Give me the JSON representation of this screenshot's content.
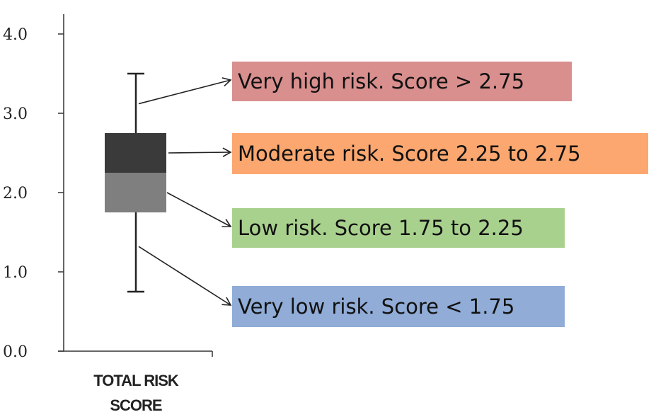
{
  "chart_data": {
    "type": "boxplot",
    "xlabel": "",
    "ylabel": "",
    "ylim": [
      0.0,
      4.0
    ],
    "yticks": [
      "0.0",
      "1.0",
      "2.0",
      "3.0",
      "4.0"
    ],
    "categories": [
      "TOTAL RISK SCORE"
    ],
    "box": {
      "whisker_low": 0.75,
      "q1": 1.75,
      "median": 2.25,
      "q3": 2.75,
      "whisker_high": 3.5,
      "upper_color": "#3a3a3a",
      "lower_color": "#7f7f7f"
    },
    "grid": false,
    "annotations": [
      {
        "text": "Very high risk. Score > 2.75",
        "color": "#d88f8e",
        "anchor_value": 3.12
      },
      {
        "text": "Moderate risk. Score 2.25 to 2.75",
        "color": "#fba76f",
        "anchor_value": 2.5
      },
      {
        "text": "Low risk. Score 1.75 to 2.25",
        "color": "#a9d18e",
        "anchor_value": 2.0
      },
      {
        "text": "Very low risk. Score < 1.75",
        "color": "#90acd7",
        "anchor_value": 1.32
      }
    ]
  }
}
